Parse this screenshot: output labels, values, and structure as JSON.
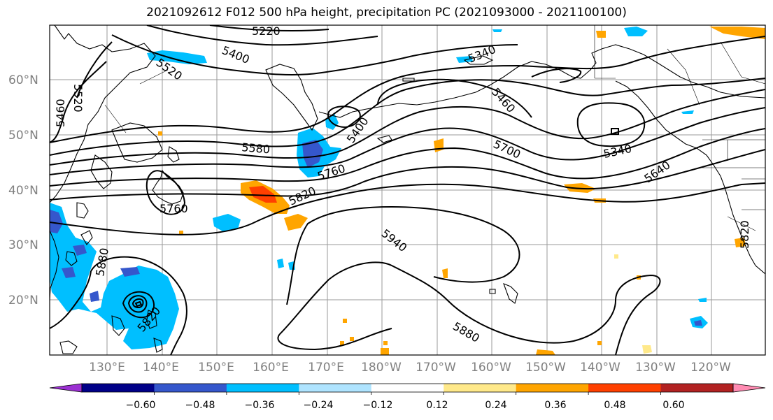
{
  "title": "2021092612 F012 500 hPa height, precipitation PC (2021093000 - 2021100100)",
  "map": {
    "lon_labels": [
      "130°E",
      "140°E",
      "150°E",
      "160°E",
      "170°E",
      "180°W",
      "170°W",
      "160°W",
      "150°W",
      "140°W",
      "130°W",
      "120°W"
    ],
    "lat_labels": [
      "60°N",
      "50°N",
      "40°N",
      "30°N",
      "20°N"
    ],
    "contour_labels": [
      "5220",
      "5400",
      "5340",
      "5520",
      "5460",
      "5520",
      "5580",
      "5400",
      "5460",
      "5700",
      "5340",
      "5640",
      "5760",
      "5820",
      "5760",
      "5940",
      "5880",
      "5820",
      "5820",
      "5880"
    ]
  },
  "colorbar": {
    "colors": [
      "#9b30d2",
      "#000088",
      "#3557cc",
      "#00bfff",
      "#afe4ff",
      "#ffffff",
      "#ffe98a",
      "#ffa500",
      "#ff4000",
      "#b22222",
      "#ff8bb2"
    ],
    "tick_labels": [
      "−0.60",
      "−0.48",
      "−0.36",
      "−0.24",
      "−0.12",
      "0.12",
      "0.24",
      "0.36",
      "0.48",
      "0.60"
    ]
  }
}
